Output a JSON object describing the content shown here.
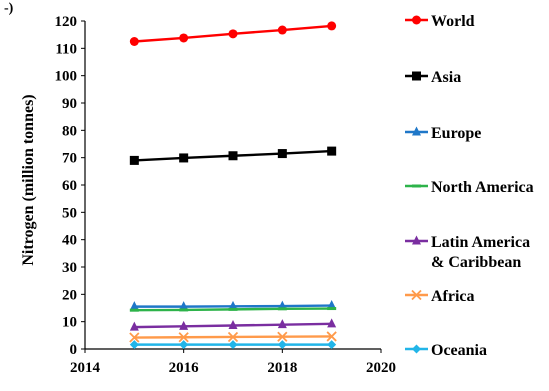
{
  "corner_mark": "-)",
  "chart_data": {
    "type": "line",
    "title": "",
    "xlabel": "",
    "ylabel": "Nitrogen (million tonnes)",
    "xlim": [
      2014,
      2020
    ],
    "ylim": [
      0,
      120
    ],
    "xticks": [
      2014,
      2016,
      2018,
      2020
    ],
    "yticks": [
      0,
      10,
      20,
      30,
      40,
      50,
      60,
      70,
      80,
      90,
      100,
      110,
      120
    ],
    "grid": false,
    "legend_position": "right",
    "x": [
      2015,
      2016,
      2017,
      2018,
      2019
    ],
    "series": [
      {
        "name": "World",
        "color": "#ff0000",
        "marker": "circle",
        "values": [
          112.5,
          113.8,
          115.3,
          116.7,
          118.2
        ]
      },
      {
        "name": "Asia",
        "color": "#000000",
        "marker": "square",
        "values": [
          69.0,
          69.9,
          70.7,
          71.5,
          72.4
        ]
      },
      {
        "name": "Europe",
        "color": "#1f77c8",
        "marker": "triangle",
        "values": [
          15.5,
          15.5,
          15.6,
          15.7,
          15.9
        ]
      },
      {
        "name": "North America",
        "color": "#2db34a",
        "marker": "dash",
        "values": [
          14.2,
          14.3,
          14.5,
          14.7,
          14.8
        ]
      },
      {
        "name": "Latin America\n& Caribbean",
        "color": "#7a2ea0",
        "marker": "triangle",
        "values": [
          8.0,
          8.3,
          8.6,
          8.9,
          9.2
        ]
      },
      {
        "name": "Africa",
        "color": "#ff9a4a",
        "marker": "x",
        "values": [
          4.2,
          4.3,
          4.4,
          4.5,
          4.6
        ]
      },
      {
        "name": "Oceania",
        "color": "#22b5e8",
        "marker": "diamond",
        "values": [
          1.6,
          1.6,
          1.6,
          1.6,
          1.6
        ]
      }
    ]
  }
}
